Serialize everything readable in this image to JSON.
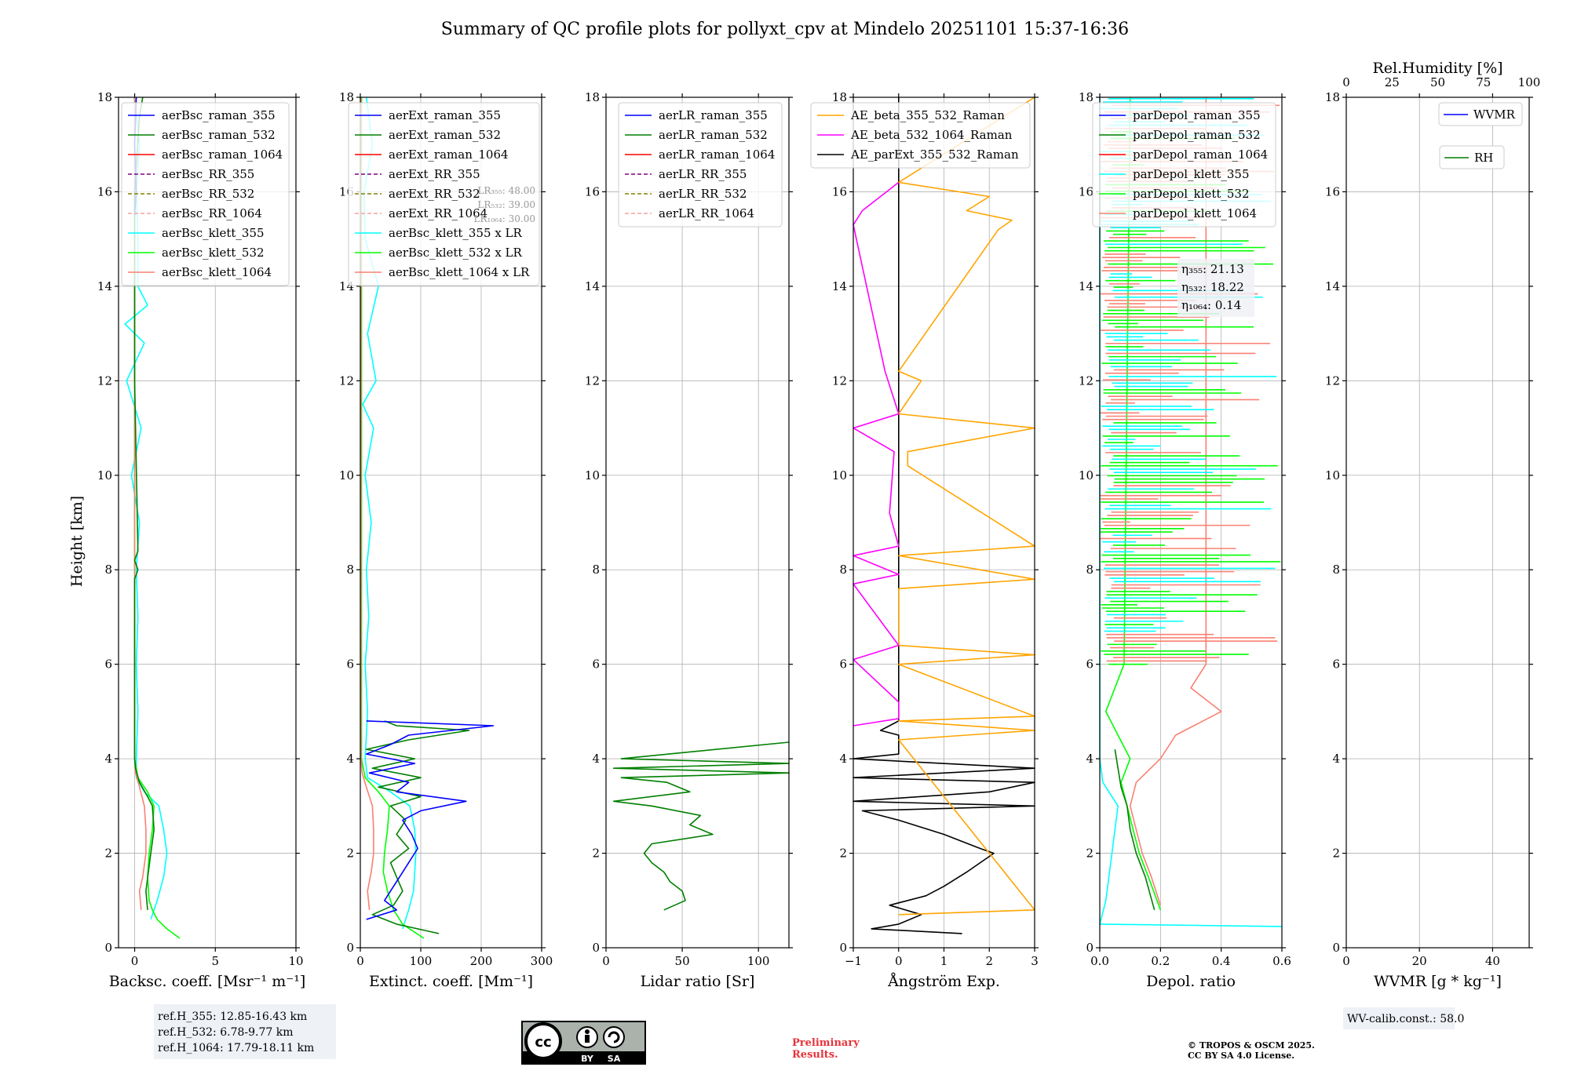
{
  "title": "Summary of QC profile plots for pollyxt_cpv at Mindelo 20251101 15:37-16:36",
  "ylabel": "Height [km]",
  "ylim": [
    0,
    18
  ],
  "yticks": [
    "0",
    "2",
    "4",
    "6",
    "8",
    "10",
    "12",
    "14",
    "16",
    "18"
  ],
  "colors": {
    "blue": "#0000ff",
    "green": "#007f00",
    "red": "#ff0000",
    "purple": "#800080",
    "olive": "#808000",
    "salmon_dashed": "#f4a2a2",
    "cyan": "#00ffff",
    "lime": "#00ff00",
    "salmon": "#fa8072",
    "orange": "#ffa500",
    "magenta": "#ff00ff",
    "black": "#000000"
  },
  "chart_data": [
    {
      "type": "line",
      "id": "bsc",
      "xlabel": "Backsc. coeff. [Msr⁻¹ m⁻¹]",
      "xlim": [
        -1,
        10
      ],
      "xticks": [
        0,
        5,
        10
      ],
      "xtick_labels": [
        "0",
        "5",
        "10"
      ],
      "legend": [
        "aerBsc_raman_355",
        "aerBsc_raman_532",
        "aerBsc_raman_1064",
        "aerBsc_RR_355",
        "aerBsc_RR_532",
        "aerBsc_RR_1064",
        "aerBsc_klett_355",
        "aerBsc_klett_532",
        "aerBsc_klett_1064"
      ],
      "legend_colors": [
        "blue",
        "green",
        "red",
        "purple",
        "olive",
        "salmon_dashed",
        "cyan",
        "lime",
        "salmon"
      ],
      "legend_dashed": [
        false,
        false,
        false,
        true,
        true,
        true,
        false,
        false,
        false
      ],
      "series": [
        {
          "name": "aerBsc_klett_355",
          "color": "cyan",
          "y": [
            0.6,
            1.0,
            1.5,
            2.0,
            2.5,
            3.0,
            3.3,
            3.6,
            4.0,
            5.0,
            6.0,
            7.0,
            8.0,
            9.0,
            10.0,
            11.0,
            12.0,
            12.8,
            13.2,
            13.6,
            14.0,
            15.0,
            16.0,
            17.0,
            18.0
          ],
          "x": [
            1.0,
            1.4,
            1.8,
            2.0,
            1.8,
            1.5,
            0.6,
            0.1,
            0.1,
            0.2,
            0.1,
            0.2,
            0.1,
            0.3,
            -0.2,
            0.4,
            -0.5,
            0.6,
            -0.6,
            0.8,
            0.2,
            0.2,
            0.1,
            0.3,
            0.0
          ]
        },
        {
          "name": "aerBsc_klett_532",
          "color": "lime",
          "y": [
            0.2,
            0.4,
            0.6,
            0.8,
            1.0,
            1.5,
            2.0,
            2.5,
            3.0,
            3.3,
            3.6,
            4.0,
            6.0,
            8.0,
            10.0,
            12.0,
            14.0,
            16.0,
            18.0
          ],
          "x": [
            2.8,
            2.0,
            1.4,
            1.1,
            0.9,
            0.8,
            0.9,
            1.1,
            1.2,
            0.8,
            0.2,
            0.0,
            0.0,
            0.0,
            0.0,
            0.0,
            0.0,
            0.0,
            0.0
          ]
        },
        {
          "name": "aerBsc_klett_1064",
          "color": "salmon",
          "y": [
            0.8,
            1.2,
            1.5,
            2.0,
            2.5,
            3.0,
            3.4,
            3.7,
            4.0,
            8.0,
            12.0,
            18.0
          ],
          "x": [
            0.4,
            0.3,
            0.5,
            0.7,
            0.7,
            0.6,
            0.3,
            0.05,
            0.0,
            0.0,
            0.0,
            0.0
          ]
        },
        {
          "name": "aerBsc_raman_532",
          "color": "green",
          "y": [
            0.8,
            1.2,
            2.0,
            2.5,
            3.0,
            3.2,
            3.5,
            3.8,
            4.0,
            7.8,
            8.0,
            8.2,
            8.4,
            12.0,
            16.0,
            17.6,
            18.0
          ],
          "x": [
            0.8,
            0.7,
            1.0,
            1.2,
            1.1,
            0.8,
            0.3,
            0.05,
            0.0,
            0.0,
            0.2,
            0.0,
            0.2,
            0.0,
            0.0,
            0.3,
            0.5
          ]
        },
        {
          "name": "aerBsc_raman_355",
          "color": "blue",
          "y": [
            15.5,
            16.0,
            17.0,
            18.0
          ],
          "x": [
            0.0,
            0.1,
            0.0,
            0.1
          ]
        }
      ]
    },
    {
      "type": "line",
      "id": "ext",
      "xlabel": "Extinct. coeff. [Mm⁻¹]",
      "xlim": [
        0,
        300
      ],
      "xticks": [
        0,
        100,
        200,
        300
      ],
      "xtick_labels": [
        "0",
        "100",
        "200",
        "300"
      ],
      "legend": [
        "aerExt_raman_355",
        "aerExt_raman_532",
        "aerExt_raman_1064",
        "aerExt_RR_355",
        "aerExt_RR_532",
        "aerExt_RR_1064",
        "aerBsc_klett_355 x LR",
        "aerBsc_klett_532 x LR",
        "aerBsc_klett_1064 x LR"
      ],
      "legend_colors": [
        "blue",
        "green",
        "red",
        "purple",
        "olive",
        "salmon_dashed",
        "cyan",
        "lime",
        "salmon"
      ],
      "legend_dashed": [
        false,
        false,
        false,
        true,
        true,
        true,
        false,
        false,
        false
      ],
      "notes": [
        "LR₃₅₅: 48.00",
        "LR₅₃₂: 39.00",
        "LR₁₀₆₄: 30.00"
      ],
      "series": [
        {
          "name": "aerBsc_klett_355 x LR",
          "color": "cyan",
          "y": [
            0.4,
            0.8,
            1.2,
            1.6,
            2.0,
            2.5,
            3.0,
            3.3,
            3.6,
            4.0,
            5.0,
            6.0,
            7.0,
            8.0,
            9.0,
            10.0,
            11.0,
            11.5,
            12.0,
            13.0,
            14.0,
            15.0,
            16.0,
            17.0,
            18.0
          ],
          "x": [
            70,
            80,
            88,
            90,
            92,
            90,
            82,
            50,
            12,
            8,
            12,
            8,
            14,
            10,
            18,
            8,
            22,
            4,
            26,
            12,
            30,
            8,
            6,
            20,
            10
          ]
        },
        {
          "name": "aerBsc_klett_532 x LR",
          "color": "lime",
          "y": [
            0.2,
            0.5,
            0.8,
            1.2,
            1.6,
            2.0,
            2.5,
            3.0,
            3.3,
            3.6,
            4.0,
            18.0
          ],
          "x": [
            105,
            70,
            55,
            45,
            38,
            40,
            45,
            48,
            30,
            8,
            2,
            2
          ]
        },
        {
          "name": "aerBsc_klett_1064 x LR",
          "color": "salmon",
          "y": [
            0.8,
            1.2,
            1.6,
            2.0,
            2.5,
            3.0,
            3.4,
            3.7,
            4.0,
            18.0
          ],
          "x": [
            15,
            12,
            18,
            22,
            22,
            20,
            10,
            3,
            1,
            1
          ]
        },
        {
          "name": "aerExt_raman_532",
          "color": "green",
          "y": [
            0.3,
            0.5,
            0.7,
            0.9,
            1.2,
            1.5,
            1.8,
            2.1,
            2.4,
            2.7,
            3.0,
            3.2,
            3.4,
            3.6,
            3.8,
            4.0,
            4.2,
            4.4,
            4.6,
            4.7,
            4.8
          ],
          "x": [
            130,
            60,
            20,
            55,
            70,
            60,
            50,
            80,
            60,
            75,
            50,
            100,
            30,
            100,
            20,
            90,
            10,
            80,
            180,
            60,
            40
          ]
        },
        {
          "name": "aerExt_raman_355",
          "color": "blue",
          "y": [
            0.6,
            0.8,
            1.0,
            1.2,
            1.5,
            1.8,
            2.1,
            2.4,
            2.7,
            2.9,
            3.1,
            3.3,
            3.5,
            3.7,
            3.9,
            4.1,
            4.3,
            4.5,
            4.7,
            4.8
          ],
          "x": [
            10,
            60,
            40,
            50,
            65,
            80,
            95,
            85,
            70,
            100,
            175,
            60,
            80,
            15,
            90,
            10,
            50,
            80,
            220,
            10
          ]
        }
      ]
    },
    {
      "type": "line",
      "id": "lr",
      "xlabel": "Lidar ratio [Sr]",
      "xlim": [
        0,
        120
      ],
      "xticks": [
        0,
        50,
        100
      ],
      "xtick_labels": [
        "0",
        "50",
        "100"
      ],
      "legend": [
        "aerLR_raman_355",
        "aerLR_raman_532",
        "aerLR_raman_1064",
        "aerLR_RR_355",
        "aerLR_RR_532",
        "aerLR_RR_1064"
      ],
      "legend_colors": [
        "blue",
        "green",
        "red",
        "purple",
        "olive",
        "salmon_dashed"
      ],
      "legend_dashed": [
        false,
        false,
        false,
        true,
        true,
        true
      ],
      "series": [
        {
          "name": "aerLR_raman_532",
          "color": "green",
          "y": [
            0.8,
            1.0,
            1.2,
            1.4,
            1.6,
            1.8,
            2.0,
            2.2,
            2.4,
            2.6,
            2.8,
            3.0,
            3.1,
            3.3,
            3.5,
            3.6,
            3.7,
            3.8,
            3.9,
            4.0,
            4.35
          ],
          "x": [
            38,
            52,
            50,
            42,
            38,
            30,
            25,
            30,
            70,
            55,
            62,
            30,
            5,
            55,
            40,
            10,
            120,
            5,
            120,
            10,
            120
          ]
        }
      ]
    },
    {
      "type": "line",
      "id": "ae",
      "xlabel": "Ångström Exp.",
      "xlim": [
        -1,
        3
      ],
      "xticks": [
        -1,
        0,
        1,
        2,
        3
      ],
      "xtick_labels": [
        "−1",
        "0",
        "1",
        "2",
        "3"
      ],
      "legend": [
        "AE_beta_355_532_Raman",
        "AE_beta_532_1064_Raman",
        "AE_parExt_355_532_Raman"
      ],
      "legend_colors": [
        "orange",
        "magenta",
        "black"
      ],
      "legend_dashed": [
        false,
        false,
        false
      ],
      "series": [
        {
          "name": "AE_parExt_355_532_Raman",
          "color": "black",
          "y": [
            0.3,
            0.4,
            0.5,
            0.7,
            0.9,
            1.1,
            1.3,
            1.6,
            2.0,
            2.1,
            2.4,
            2.7,
            2.9,
            3.0,
            3.1,
            3.3,
            3.5,
            3.6,
            3.8,
            4.0,
            4.1,
            4.5,
            4.6,
            4.8,
            5.0,
            18.0
          ],
          "x": [
            1.4,
            -0.6,
            0.0,
            0.5,
            -0.2,
            0.6,
            1.0,
            1.5,
            2.1,
            1.8,
            1.0,
            0.0,
            -0.8,
            3.0,
            -1.0,
            2.0,
            3.0,
            -1.0,
            3.0,
            -1.0,
            0.0,
            0.0,
            -0.4,
            0.0,
            0.0,
            0.0
          ]
        },
        {
          "name": "AE_beta_355_532_Raman",
          "color": "orange",
          "y": [
            0.7,
            0.8,
            4.4,
            4.6,
            4.8,
            4.9,
            6.0,
            6.2,
            6.4,
            7.6,
            7.8,
            8.3,
            8.5,
            10.2,
            10.5,
            11.0,
            11.3,
            12.0,
            12.2,
            15.2,
            15.4,
            15.6,
            15.9,
            16.2,
            18.0
          ],
          "x": [
            0.0,
            3.0,
            0.0,
            3.0,
            0.0,
            3.0,
            0.0,
            3.0,
            0.0,
            0.0,
            3.0,
            0.0,
            3.0,
            0.2,
            0.2,
            3.0,
            0.0,
            0.5,
            0.0,
            2.2,
            2.5,
            1.5,
            2.0,
            0.0,
            3.0
          ]
        },
        {
          "name": "AE_beta_532_1064_Raman",
          "color": "magenta",
          "y": [
            4.7,
            4.85,
            5.2,
            6.1,
            6.4,
            7.7,
            7.9,
            8.3,
            8.5,
            9.2,
            10.5,
            11.0,
            11.3,
            12.2,
            15.3,
            15.6,
            16.2
          ],
          "x": [
            -1.0,
            0.0,
            0.0,
            -1.0,
            0.0,
            -1.0,
            0.0,
            -1.0,
            0.0,
            -0.2,
            -0.1,
            -1.0,
            0.0,
            -0.3,
            -1.0,
            -0.8,
            0.0
          ]
        }
      ]
    },
    {
      "type": "line",
      "id": "depol",
      "xlabel": "Depol. ratio",
      "xlim": [
        0,
        0.6
      ],
      "xticks": [
        0,
        0.2,
        0.4,
        0.6
      ],
      "xtick_labels": [
        "0.0",
        "0.2",
        "0.4",
        "0.6"
      ],
      "legend": [
        "parDepol_raman_355",
        "parDepol_raman_532",
        "parDepol_raman_1064",
        "parDepol_klett_355",
        "parDepol_klett_532",
        "parDepol_klett_1064"
      ],
      "legend_colors": [
        "blue",
        "green",
        "red",
        "cyan",
        "lime",
        "salmon"
      ],
      "legend_dashed": [
        false,
        false,
        false,
        false,
        false,
        false
      ],
      "notes": [
        "η₃₅₅: 21.13",
        "η₅₃₂: 18.22",
        "η₁₀₆₄: 0.14"
      ],
      "series": [
        {
          "name": "parDepol_klett_355",
          "color": "cyan",
          "y": [
            0.45,
            0.5,
            1.0,
            1.5,
            2.0,
            2.5,
            3.0,
            3.3,
            3.5,
            4.0,
            18.0
          ],
          "x": [
            0.6,
            0.0,
            0.02,
            0.03,
            0.04,
            0.05,
            0.06,
            0.03,
            0.01,
            0.0,
            0.0
          ]
        },
        {
          "name": "parDepol_klett_1064",
          "color": "salmon",
          "y": [
            0.9,
            1.5,
            2.0,
            2.5,
            3.0,
            3.5,
            4.0,
            4.5,
            5.0,
            5.5,
            6.0,
            18.0
          ],
          "x": [
            0.2,
            0.17,
            0.14,
            0.12,
            0.1,
            0.12,
            0.2,
            0.25,
            0.4,
            0.3,
            0.35,
            0.35
          ]
        },
        {
          "name": "parDepol_klett_532",
          "color": "lime",
          "y": [
            0.8,
            1.5,
            2.0,
            2.5,
            3.0,
            3.5,
            4.0,
            4.5,
            5.0,
            6.0,
            18.0
          ],
          "x": [
            0.2,
            0.16,
            0.13,
            0.11,
            0.09,
            0.07,
            0.1,
            0.06,
            0.02,
            0.08,
            0.1
          ]
        },
        {
          "name": "parDepol_raman_532",
          "color": "green",
          "y": [
            0.8,
            1.5,
            2.0,
            2.5,
            3.0,
            3.4,
            3.8,
            4.2
          ],
          "x": [
            0.18,
            0.15,
            0.12,
            0.1,
            0.09,
            0.07,
            0.06,
            0.05
          ]
        }
      ]
    },
    {
      "type": "line",
      "id": "wv",
      "xlabel": "WVMR [g * kg⁻¹]",
      "xlim": [
        0,
        50
      ],
      "xticks": [
        0,
        20,
        40
      ],
      "xtick_labels": [
        "0",
        "20",
        "40"
      ],
      "top_label": "Rel.Humidity [%]",
      "top_xticks": [
        "0",
        "25",
        "50",
        "75",
        "100"
      ],
      "legend": [
        "WVMR",
        "RH"
      ],
      "legend_colors": [
        "blue",
        "green"
      ],
      "legend_dashed": [
        false,
        false
      ],
      "series": []
    }
  ],
  "footer": {
    "refh_lines": [
      "ref.H_355: 12.85-16.43 km",
      "ref.H_532: 6.78-9.77 km",
      "ref.H_1064: 17.79-18.11 km"
    ],
    "wv_calib": "WV-calib.const.: 58.0",
    "preliminary": [
      "Preliminary",
      "Results."
    ],
    "copyright": [
      "© TROPOS & OSCM 2025.",
      "CC BY SA 4.0 License."
    ],
    "cc_badge": [
      "cc",
      "BY",
      "SA"
    ]
  }
}
